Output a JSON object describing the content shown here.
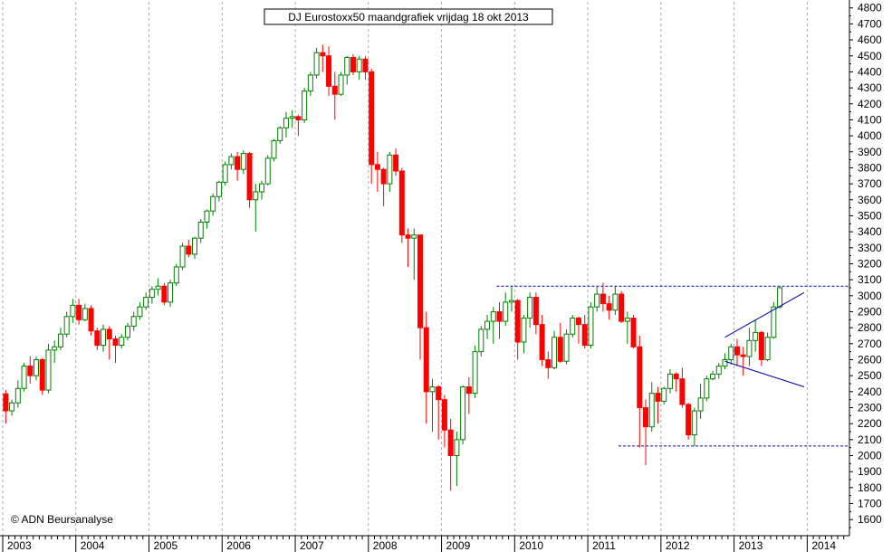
{
  "chart_data": {
    "type": "candlestick",
    "title": "DJ Eurostoxx50 maandgrafiek vrijdag 18 okt 2013",
    "copyright": "© ADN Beursanalyse",
    "ylim": [
      1500,
      4800
    ],
    "yticks": [
      1600,
      1700,
      1800,
      1900,
      2000,
      2100,
      2200,
      2300,
      2400,
      2500,
      2600,
      2700,
      2800,
      2900,
      3000,
      3100,
      3200,
      3300,
      3400,
      3500,
      3600,
      3700,
      3800,
      3900,
      4000,
      4100,
      4200,
      4300,
      4400,
      4500,
      4600,
      4700,
      4800
    ],
    "years": [
      "2003",
      "2004",
      "2005",
      "2006",
      "2007",
      "2008",
      "2009",
      "2010",
      "2011",
      "2012",
      "2013",
      "2014"
    ],
    "grid": true,
    "colors": {
      "up": "#008000",
      "down": "#ff0000",
      "trendline": "#0000aa",
      "grid": "#aaaaaa"
    },
    "start": "2003-01",
    "candles": [
      [
        2386,
        2410,
        2200,
        2280
      ],
      [
        2280,
        2350,
        2250,
        2330
      ],
      [
        2330,
        2470,
        2300,
        2420
      ],
      [
        2420,
        2580,
        2400,
        2560
      ],
      [
        2560,
        2620,
        2450,
        2500
      ],
      [
        2500,
        2620,
        2470,
        2600
      ],
      [
        2600,
        2610,
        2380,
        2410
      ],
      [
        2410,
        2700,
        2390,
        2660
      ],
      [
        2660,
        2720,
        2580,
        2680
      ],
      [
        2680,
        2800,
        2660,
        2760
      ],
      [
        2760,
        2900,
        2740,
        2870
      ],
      [
        2870,
        2980,
        2830,
        2940
      ],
      [
        2940,
        2980,
        2820,
        2850
      ],
      [
        2850,
        2950,
        2840,
        2920
      ],
      [
        2920,
        2940,
        2750,
        2780
      ],
      [
        2780,
        2800,
        2660,
        2690
      ],
      [
        2690,
        2820,
        2650,
        2790
      ],
      [
        2790,
        2810,
        2600,
        2730
      ],
      [
        2730,
        2750,
        2580,
        2690
      ],
      [
        2690,
        2760,
        2670,
        2740
      ],
      [
        2740,
        2830,
        2720,
        2810
      ],
      [
        2810,
        2900,
        2780,
        2870
      ],
      [
        2870,
        2960,
        2850,
        2930
      ],
      [
        2930,
        3020,
        2910,
        2990
      ],
      [
        2990,
        3060,
        2950,
        3040
      ],
      [
        3040,
        3110,
        3000,
        3060
      ],
      [
        3060,
        3080,
        2940,
        2960
      ],
      [
        2960,
        3100,
        2930,
        3080
      ],
      [
        3080,
        3200,
        3060,
        3180
      ],
      [
        3180,
        3330,
        3160,
        3310
      ],
      [
        3310,
        3350,
        3240,
        3260
      ],
      [
        3260,
        3370,
        3230,
        3360
      ],
      [
        3360,
        3480,
        3330,
        3460
      ],
      [
        3460,
        3540,
        3420,
        3530
      ],
      [
        3530,
        3640,
        3500,
        3620
      ],
      [
        3620,
        3720,
        3590,
        3710
      ],
      [
        3710,
        3840,
        3690,
        3820
      ],
      [
        3820,
        3890,
        3790,
        3870
      ],
      [
        3870,
        3900,
        3720,
        3790
      ],
      [
        3790,
        3910,
        3760,
        3890
      ],
      [
        3890,
        3900,
        3550,
        3600
      ],
      [
        3600,
        3700,
        3400,
        3650
      ],
      [
        3650,
        3720,
        3600,
        3700
      ],
      [
        3700,
        3880,
        3690,
        3860
      ],
      [
        3860,
        3980,
        3840,
        3970
      ],
      [
        3970,
        4060,
        3950,
        4050
      ],
      [
        4050,
        4150,
        3990,
        4110
      ],
      [
        4110,
        4160,
        4050,
        4120
      ],
      [
        4120,
        4130,
        4000,
        4100
      ],
      [
        4100,
        4300,
        4080,
        4280
      ],
      [
        4280,
        4400,
        4250,
        4380
      ],
      [
        4380,
        4550,
        4360,
        4520
      ],
      [
        4520,
        4570,
        4400,
        4500
      ],
      [
        4500,
        4560,
        4250,
        4310
      ],
      [
        4310,
        4400,
        4100,
        4260
      ],
      [
        4260,
        4400,
        4250,
        4380
      ],
      [
        4380,
        4500,
        4320,
        4490
      ],
      [
        4490,
        4510,
        4380,
        4400
      ],
      [
        4400,
        4500,
        4350,
        4480
      ],
      [
        4480,
        4500,
        4350,
        4400
      ],
      [
        4400,
        4420,
        3700,
        3820
      ],
      [
        3820,
        3900,
        3650,
        3790
      ],
      [
        3790,
        3800,
        3560,
        3700
      ],
      [
        3700,
        3900,
        3650,
        3880
      ],
      [
        3880,
        3920,
        3750,
        3780
      ],
      [
        3780,
        3800,
        3330,
        3380
      ],
      [
        3380,
        3420,
        3180,
        3360
      ],
      [
        3360,
        3420,
        3100,
        3380
      ],
      [
        3380,
        3380,
        2600,
        2800
      ],
      [
        2800,
        2900,
        2200,
        2400
      ],
      [
        2400,
        2480,
        2150,
        2430
      ],
      [
        2430,
        2440,
        2100,
        2350
      ],
      [
        2350,
        2380,
        2050,
        2160
      ],
      [
        2160,
        2230,
        1780,
        2000
      ],
      [
        2000,
        2150,
        1810,
        2100
      ],
      [
        2100,
        2440,
        2070,
        2430
      ],
      [
        2430,
        2490,
        2260,
        2390
      ],
      [
        2390,
        2690,
        2360,
        2650
      ],
      [
        2650,
        2810,
        2620,
        2790
      ],
      [
        2790,
        2880,
        2730,
        2840
      ],
      [
        2840,
        2930,
        2700,
        2900
      ],
      [
        2900,
        2960,
        2730,
        2840
      ],
      [
        2840,
        3020,
        2810,
        2960
      ],
      [
        2960,
        3060,
        2900,
        2970
      ],
      [
        2970,
        2980,
        2600,
        2710
      ],
      [
        2710,
        2880,
        2640,
        2860
      ],
      [
        2860,
        3020,
        2800,
        2990
      ],
      [
        2990,
        3020,
        2760,
        2820
      ],
      [
        2820,
        2880,
        2560,
        2600
      ],
      [
        2600,
        2650,
        2480,
        2550
      ],
      [
        2550,
        2780,
        2540,
        2740
      ],
      [
        2740,
        2830,
        2580,
        2590
      ],
      [
        2590,
        2790,
        2570,
        2760
      ],
      [
        2760,
        2880,
        2740,
        2860
      ],
      [
        2860,
        2870,
        2700,
        2820
      ],
      [
        2820,
        2880,
        2670,
        2690
      ],
      [
        2690,
        2960,
        2670,
        2930
      ],
      [
        2930,
        3060,
        2900,
        3010
      ],
      [
        3010,
        3080,
        2900,
        2950
      ],
      [
        2950,
        3000,
        2850,
        2910
      ],
      [
        2910,
        3060,
        2880,
        3010
      ],
      [
        3010,
        3030,
        2830,
        2840
      ],
      [
        2840,
        2900,
        2700,
        2860
      ],
      [
        2860,
        2880,
        2670,
        2680
      ],
      [
        2680,
        2750,
        2050,
        2300
      ],
      [
        2300,
        2350,
        1940,
        2180
      ],
      [
        2180,
        2460,
        2150,
        2390
      ],
      [
        2390,
        2430,
        2200,
        2340
      ],
      [
        2340,
        2430,
        2320,
        2420
      ],
      [
        2420,
        2540,
        2390,
        2510
      ],
      [
        2510,
        2520,
        2400,
        2480
      ],
      [
        2480,
        2550,
        2300,
        2320
      ],
      [
        2320,
        2330,
        2100,
        2130
      ],
      [
        2130,
        2300,
        2060,
        2280
      ],
      [
        2280,
        2450,
        2230,
        2360
      ],
      [
        2360,
        2500,
        2340,
        2480
      ],
      [
        2480,
        2530,
        2470,
        2510
      ],
      [
        2510,
        2580,
        2480,
        2560
      ],
      [
        2560,
        2640,
        2540,
        2600
      ],
      [
        2600,
        2700,
        2570,
        2680
      ],
      [
        2680,
        2730,
        2560,
        2630
      ],
      [
        2630,
        2680,
        2500,
        2620
      ],
      [
        2620,
        2800,
        2560,
        2720
      ],
      [
        2720,
        2850,
        2650,
        2770
      ],
      [
        2770,
        2780,
        2560,
        2600
      ],
      [
        2600,
        2770,
        2590,
        2740
      ],
      [
        2740,
        2960,
        2730,
        2930
      ],
      [
        2930,
        3060,
        2920,
        3050
      ]
    ],
    "hlines": [
      3060,
      2060
    ],
    "trendlines": [
      {
        "from": [
          "2012-11",
          2740
        ],
        "to": [
          "2013-12",
          3020
        ]
      },
      {
        "from": [
          "2012-11",
          2590
        ],
        "to": [
          "2013-12",
          2430
        ]
      }
    ]
  }
}
